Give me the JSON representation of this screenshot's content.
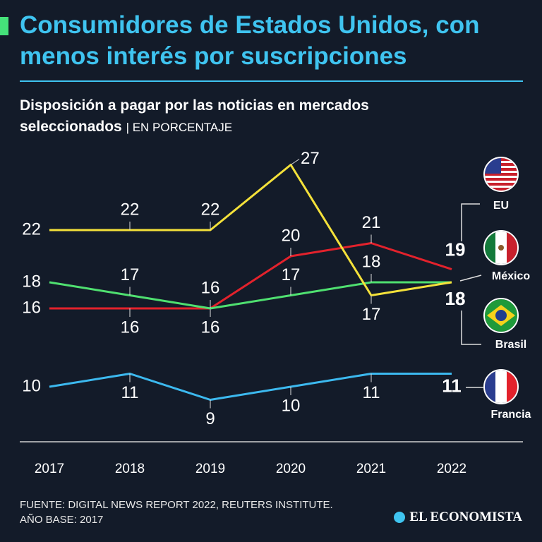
{
  "chart_data": {
    "type": "line",
    "title": "Consumidores de Estados Unidos, con menos interés por suscripciones",
    "subtitle": "Disposición a pagar por las noticias en mercados seleccionados",
    "unit": "| EN PORCENTAJE",
    "x": [
      2017,
      2018,
      2019,
      2020,
      2021,
      2022
    ],
    "xlim": [
      2017,
      2022
    ],
    "series": [
      {
        "name": "EU",
        "color": "#e3222c",
        "values": [
          16,
          16,
          16,
          20,
          21,
          19
        ]
      },
      {
        "name": "México",
        "color": "#4fe070",
        "values": [
          18,
          17,
          16,
          17,
          18,
          18
        ]
      },
      {
        "name": "Brasil",
        "color": "#f4e13a",
        "values": [
          22,
          22,
          22,
          27,
          17,
          18
        ]
      },
      {
        "name": "Francia",
        "color": "#3cb9ef",
        "values": [
          10,
          11,
          9,
          10,
          11,
          11
        ]
      }
    ],
    "source": "FUENTE: DIGITAL NEWS REPORT 2022, REUTERS INSTITUTE.",
    "note": "AÑO BASE: 2017"
  },
  "brand": "EL ECONOMISTA"
}
